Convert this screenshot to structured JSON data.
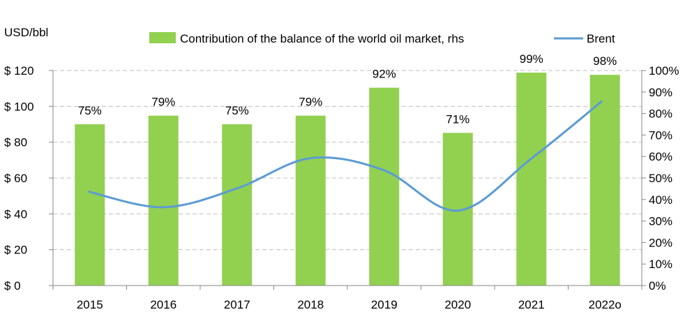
{
  "chart_data": {
    "type": "bar+line",
    "categories": [
      "2015",
      "2016",
      "2017",
      "2018",
      "2019",
      "2020",
      "2021",
      "2022o"
    ],
    "left_axis": {
      "label": "USD/bbl",
      "range": [
        0,
        120
      ],
      "ticks": [
        "$ 0",
        "$ 20",
        "$ 40",
        "$ 60",
        "$ 80",
        "$ 100",
        "$ 120"
      ]
    },
    "right_axis": {
      "range": [
        0,
        100
      ],
      "ticks": [
        "0%",
        "10%",
        "20%",
        "30%",
        "40%",
        "50%",
        "60%",
        "70%",
        "80%",
        "90%",
        "100%"
      ]
    },
    "series": [
      {
        "name": "Contribution of the balance of the world oil market, rhs",
        "type": "bar",
        "axis": "right",
        "color": "#92d050",
        "values": [
          75,
          79,
          75,
          79,
          92,
          71,
          99,
          98
        ],
        "labels": [
          "75%",
          "79%",
          "75%",
          "79%",
          "92%",
          "71%",
          "99%",
          "98%"
        ]
      },
      {
        "name": "Brent",
        "type": "line",
        "axis": "left",
        "color": "#5b9bd5",
        "values": [
          52.4,
          43.7,
          54.2,
          71.1,
          64.3,
          41.8,
          70.9,
          103.0
        ]
      }
    ],
    "grid": "horizontal dashed",
    "legend_position": "top"
  }
}
